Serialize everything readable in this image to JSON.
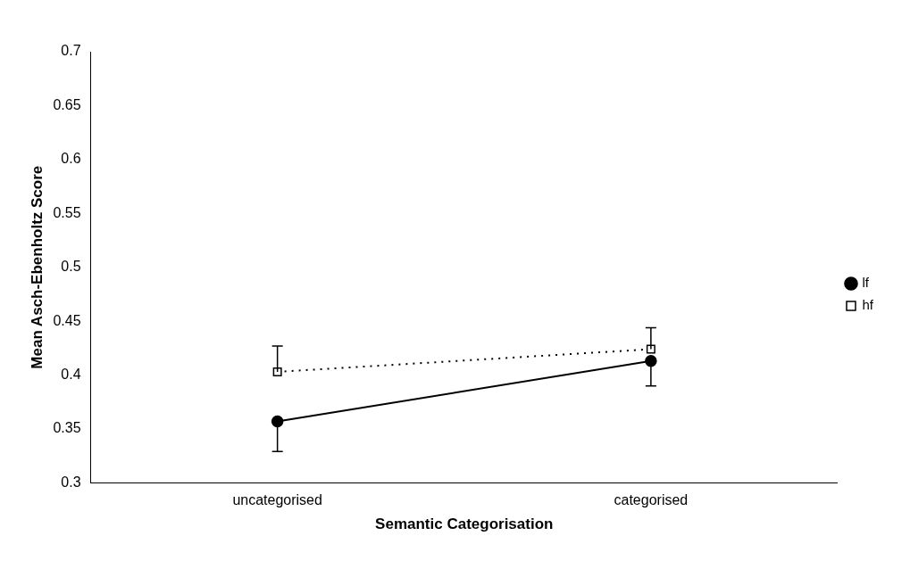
{
  "chart_data": {
    "type": "line",
    "xlabel": "Semantic Categorisation",
    "ylabel": "Mean Asch-Ebenholtz Score",
    "categories": [
      "uncategorised",
      "categorised"
    ],
    "series": [
      {
        "name": "lf",
        "color": "#000000",
        "values": [
          0.357,
          0.413
        ],
        "errors": [
          [
            0.329,
            0.357
          ],
          [
            0.39,
            0.413
          ]
        ],
        "marker": "circle",
        "line_style": "solid"
      },
      {
        "name": "hf",
        "color": "#000000",
        "values": [
          0.403,
          0.424
        ],
        "errors": [
          [
            0.403,
            0.427
          ],
          [
            0.424,
            0.444
          ]
        ],
        "marker": "square",
        "line_style": "dotted"
      }
    ],
    "ylim": [
      0.3,
      0.7
    ],
    "yticks": [
      0.3,
      0.35,
      0.4,
      0.45,
      0.5,
      0.55,
      0.6,
      0.65,
      0.7
    ],
    "grid": false,
    "legend": "right"
  }
}
